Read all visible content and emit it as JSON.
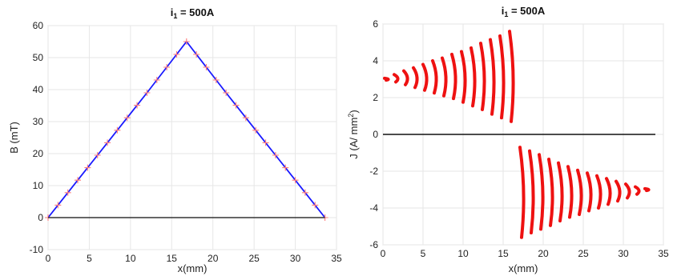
{
  "chart_data": [
    {
      "type": "line",
      "title_main": "i",
      "title_sub": "1",
      "title_rest": " = 500A",
      "xlabel": "x(mm)",
      "ylabel": "B (mT)",
      "xlim": [
        0,
        35
      ],
      "ylim": [
        -10,
        60
      ],
      "x_ticks": [
        "0",
        "5",
        "10",
        "15",
        "20",
        "25",
        "30",
        "35"
      ],
      "y_ticks": [
        "-10",
        "0",
        "10",
        "20",
        "30",
        "40",
        "50",
        "60"
      ],
      "grid": true,
      "series": [
        {
          "color": "#1a1aff",
          "style": "line",
          "x": [
            0,
            1.2,
            2.4,
            3.6,
            4.8,
            6.0,
            7.2,
            8.4,
            9.6,
            10.8,
            12.0,
            13.2,
            14.4,
            15.6,
            16.8,
            18.0,
            19.2,
            20.4,
            21.6,
            22.8,
            24.0,
            25.2,
            26.4,
            27.6,
            28.8,
            30.0,
            31.2,
            32.4,
            33.6
          ],
          "y": [
            0,
            3.9,
            7.8,
            11.7,
            15.6,
            19.5,
            23.4,
            27.3,
            31.2,
            35.1,
            39.0,
            43.0,
            47.0,
            51.0,
            55.0,
            51.0,
            47.0,
            43.0,
            39.0,
            35.1,
            31.2,
            27.3,
            23.4,
            19.5,
            15.6,
            11.7,
            7.8,
            3.9,
            0
          ]
        },
        {
          "color": "#ff7a7a",
          "style": "plus-markers",
          "x": [
            0,
            1.2,
            2.4,
            3.6,
            4.8,
            6.0,
            7.2,
            8.4,
            9.6,
            10.8,
            12.0,
            13.2,
            14.4,
            15.6,
            16.8,
            18.0,
            19.2,
            20.4,
            21.6,
            22.8,
            24.0,
            25.2,
            26.4,
            27.6,
            28.8,
            30.0,
            31.2,
            32.4,
            33.6
          ],
          "y": [
            0,
            3.9,
            7.8,
            11.7,
            15.6,
            19.5,
            23.4,
            27.3,
            31.2,
            35.1,
            39.0,
            43.0,
            47.0,
            51.0,
            55.0,
            51.0,
            47.0,
            43.0,
            39.0,
            35.1,
            31.2,
            27.3,
            23.4,
            19.5,
            15.6,
            11.7,
            7.8,
            3.9,
            0
          ]
        },
        {
          "color": "#333333",
          "style": "line",
          "x": [
            0,
            33.6
          ],
          "y": [
            0,
            0
          ]
        }
      ]
    },
    {
      "type": "line",
      "title_main": "i",
      "title_sub": "1",
      "title_rest": " = 500A",
      "xlabel": "x(mm)",
      "ylabel_main": "J (A/ mm",
      "ylabel_sup": "2",
      "ylabel_end": ")",
      "xlim": [
        0,
        35
      ],
      "ylim": [
        -6,
        6
      ],
      "x_ticks": [
        "0",
        "5",
        "10",
        "15",
        "20",
        "25",
        "30",
        "35"
      ],
      "y_ticks": [
        "-6",
        "-4",
        "-2",
        "0",
        "2",
        "4",
        "6"
      ],
      "grid": true,
      "series": [
        {
          "color": "#ee1111",
          "style": "thick-vertical-strokes",
          "x": [
            0.5,
            1.7,
            2.9,
            4.1,
            5.3,
            6.5,
            7.7,
            8.9,
            10.1,
            11.3,
            12.5,
            13.7,
            14.9,
            16.1
          ],
          "y_top": [
            3.05,
            3.25,
            3.45,
            3.62,
            3.8,
            4.0,
            4.15,
            4.35,
            4.5,
            4.7,
            4.95,
            5.15,
            5.35,
            5.6
          ],
          "y_bottom": [
            2.95,
            2.85,
            2.7,
            2.55,
            2.4,
            2.25,
            2.1,
            1.95,
            1.75,
            1.55,
            1.35,
            1.1,
            0.9,
            0.7
          ]
        },
        {
          "color": "#ee1111",
          "style": "thick-vertical-strokes",
          "x": [
            17.4,
            18.6,
            19.8,
            21.0,
            22.2,
            23.4,
            24.6,
            25.8,
            27.0,
            28.2,
            29.4,
            30.6,
            31.8,
            33.0
          ],
          "y_top": [
            -0.7,
            -0.9,
            -1.1,
            -1.35,
            -1.55,
            -1.75,
            -1.95,
            -2.1,
            -2.25,
            -2.4,
            -2.55,
            -2.7,
            -2.85,
            -2.95
          ],
          "y_bottom": [
            -5.6,
            -5.35,
            -5.15,
            -4.95,
            -4.7,
            -4.5,
            -4.35,
            -4.15,
            -4.0,
            -3.8,
            -3.62,
            -3.45,
            -3.25,
            -3.05
          ]
        },
        {
          "color": "#111111",
          "style": "line",
          "x": [
            0,
            34
          ],
          "y": [
            0,
            0
          ]
        }
      ]
    }
  ]
}
